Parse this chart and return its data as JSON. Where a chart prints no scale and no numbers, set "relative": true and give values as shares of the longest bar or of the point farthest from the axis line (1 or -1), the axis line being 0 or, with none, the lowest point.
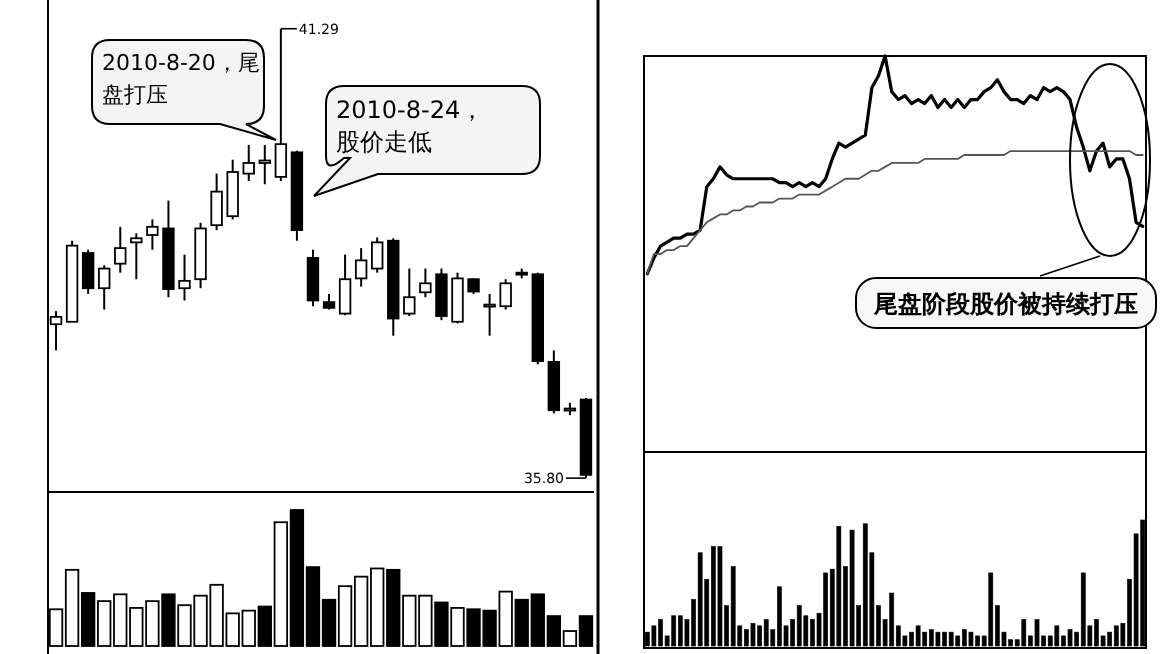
{
  "chart_data": [
    {
      "type": "candlestick",
      "categories": [
        null,
        null,
        null,
        null,
        null,
        null,
        null,
        null,
        null,
        null,
        null,
        null,
        null,
        null,
        null,
        null,
        null,
        null,
        null,
        null,
        null,
        null,
        null,
        null,
        null,
        null,
        null,
        null,
        null,
        null,
        null,
        null,
        null,
        null
      ],
      "ohlc": [
        [
          37.68,
          37.84,
          37.36,
          37.77
        ],
        [
          37.71,
          38.7,
          37.71,
          38.64
        ],
        [
          38.55,
          38.59,
          38.05,
          38.12
        ],
        [
          38.12,
          38.4,
          37.86,
          38.36
        ],
        [
          38.42,
          38.87,
          38.31,
          38.61
        ],
        [
          38.68,
          38.79,
          38.23,
          38.73
        ],
        [
          38.77,
          38.96,
          38.59,
          38.87
        ],
        [
          38.85,
          39.19,
          38.01,
          38.11
        ],
        [
          38.12,
          38.53,
          37.97,
          38.21
        ],
        [
          38.23,
          38.92,
          38.12,
          38.85
        ],
        [
          38.89,
          39.52,
          38.83,
          39.3
        ],
        [
          39.0,
          39.69,
          38.96,
          39.54
        ],
        [
          39.52,
          39.87,
          39.43,
          39.65
        ],
        [
          39.65,
          39.87,
          39.39,
          39.68
        ],
        [
          39.48,
          41.29,
          39.43,
          39.88
        ],
        [
          39.78,
          39.8,
          38.7,
          38.83
        ],
        [
          38.49,
          38.59,
          37.9,
          37.97
        ],
        [
          37.95,
          38.05,
          37.86,
          37.88
        ],
        [
          37.81,
          38.53,
          37.79,
          38.23
        ],
        [
          38.24,
          38.61,
          38.14,
          38.46
        ],
        [
          38.36,
          38.74,
          38.31,
          38.68
        ],
        [
          38.7,
          38.73,
          37.54,
          37.75
        ],
        [
          37.81,
          38.36,
          37.78,
          38.01
        ],
        [
          38.07,
          38.36,
          38.01,
          38.18
        ],
        [
          38.29,
          38.36,
          37.73,
          37.78
        ],
        [
          37.71,
          38.31,
          37.69,
          38.24
        ],
        [
          38.23,
          38.24,
          38.05,
          38.08
        ],
        [
          37.9,
          38.05,
          37.54,
          37.92
        ],
        [
          37.9,
          38.23,
          37.86,
          38.18
        ],
        [
          38.31,
          38.36,
          38.24,
          38.29
        ],
        [
          38.29,
          38.31,
          37.19,
          37.23
        ],
        [
          37.22,
          37.36,
          36.59,
          36.63
        ],
        [
          36.63,
          36.72,
          36.57,
          36.65
        ],
        [
          36.76,
          36.78,
          35.8,
          35.84
        ]
      ],
      "annotations": [
        "41.29",
        "35.80",
        "2010-8-20，尾盘打压",
        "2010-8-24，股价走低"
      ]
    },
    {
      "type": "bar",
      "relative": true,
      "categories": [
        null,
        null,
        null,
        null,
        null,
        null,
        null,
        null,
        null,
        null,
        null,
        null,
        null,
        null,
        null,
        null,
        null,
        null,
        null,
        null,
        null,
        null,
        null,
        null,
        null,
        null,
        null,
        null,
        null,
        null,
        null,
        null,
        null,
        null
      ],
      "values": [
        0.27,
        0.56,
        0.39,
        0.33,
        0.38,
        0.28,
        0.33,
        0.38,
        0.3,
        0.37,
        0.45,
        0.24,
        0.26,
        0.29,
        0.91,
        1,
        0.58,
        0.34,
        0.44,
        0.51,
        0.57,
        0.56,
        0.37,
        0.37,
        0.32,
        0.28,
        0.27,
        0.26,
        0.4,
        0.34,
        0.38,
        0.22,
        0.11,
        0.22
      ],
      "colors": [
        "#ffffff",
        "#ffffff",
        "#000000",
        "#ffffff",
        "#ffffff",
        "#ffffff",
        "#ffffff",
        "#000000",
        "#ffffff",
        "#ffffff",
        "#ffffff",
        "#ffffff",
        "#ffffff",
        "#000000",
        "#ffffff",
        "#000000",
        "#000000",
        "#000000",
        "#ffffff",
        "#ffffff",
        "#ffffff",
        "#000000",
        "#ffffff",
        "#ffffff",
        "#000000",
        "#ffffff",
        "#000000",
        "#000000",
        "#ffffff",
        "#000000",
        "#000000",
        "#000000",
        "#ffffff",
        "#000000"
      ]
    },
    {
      "type": "line",
      "relative": true,
      "categories": [
        null,
        null,
        null,
        null,
        null,
        null,
        null,
        null,
        null,
        null,
        null,
        null,
        null,
        null,
        null,
        null,
        null,
        null,
        null,
        null,
        null,
        null,
        null,
        null,
        null,
        null,
        null,
        null,
        null,
        null,
        null,
        null,
        null,
        null,
        null,
        null,
        null,
        null,
        null,
        null,
        null,
        null,
        null,
        null,
        null,
        null,
        null,
        null,
        null,
        null,
        null,
        null,
        null,
        null,
        null,
        null,
        null,
        null,
        null,
        null,
        null,
        null,
        null,
        null,
        null,
        null,
        null,
        null,
        null,
        null,
        null,
        null,
        null,
        null,
        null,
        null
      ],
      "series": [
        {
          "color": "#000000",
          "values": [
            0.45,
            0.49,
            0.52,
            0.53,
            0.54,
            0.54,
            0.55,
            0.55,
            0.56,
            0.67,
            0.69,
            0.72,
            0.7,
            0.69,
            0.69,
            0.69,
            0.69,
            0.69,
            0.69,
            0.69,
            0.68,
            0.68,
            0.67,
            0.68,
            0.67,
            0.68,
            0.67,
            0.69,
            0.74,
            0.78,
            0.77,
            0.78,
            0.79,
            0.8,
            0.92,
            0.95,
            1,
            0.91,
            0.89,
            0.9,
            0.88,
            0.89,
            0.88,
            0.9,
            0.87,
            0.89,
            0.87,
            0.89,
            0.87,
            0.89,
            0.89,
            0.91,
            0.92,
            0.94,
            0.91,
            0.89,
            0.89,
            0.88,
            0.9,
            0.89,
            0.92,
            0.91,
            0.92,
            0.91,
            0.89,
            0.82,
            0.77,
            0.71,
            0.76,
            0.78,
            0.72,
            0.74,
            0.74,
            0.69,
            0.58,
            0.57
          ]
        },
        {
          "color": "#555555",
          "values": [
            0.45,
            0.5,
            0.5,
            0.51,
            0.51,
            0.52,
            0.52,
            0.54,
            0.56,
            0.58,
            0.59,
            0.6,
            0.6,
            0.61,
            0.61,
            0.62,
            0.62,
            0.63,
            0.63,
            0.63,
            0.64,
            0.64,
            0.64,
            0.65,
            0.65,
            0.65,
            0.65,
            0.66,
            0.67,
            0.68,
            0.69,
            0.69,
            0.69,
            0.7,
            0.71,
            0.71,
            0.72,
            0.73,
            0.73,
            0.73,
            0.73,
            0.73,
            0.74,
            0.74,
            0.74,
            0.74,
            0.74,
            0.74,
            0.75,
            0.75,
            0.75,
            0.75,
            0.75,
            0.75,
            0.75,
            0.76,
            0.76,
            0.76,
            0.76,
            0.76,
            0.76,
            0.76,
            0.76,
            0.76,
            0.76,
            0.76,
            0.76,
            0.76,
            0.76,
            0.76,
            0.76,
            0.76,
            0.76,
            0.76,
            0.75,
            0.75
          ]
        }
      ],
      "annotations": [
        "尾盘阶段股价被持续打压"
      ]
    },
    {
      "type": "bar",
      "relative": true,
      "color": "#000000",
      "categories": [
        null,
        null,
        null,
        null,
        null,
        null,
        null,
        null,
        null,
        null,
        null,
        null,
        null,
        null,
        null,
        null,
        null,
        null,
        null,
        null,
        null,
        null,
        null,
        null,
        null,
        null,
        null,
        null,
        null,
        null,
        null,
        null,
        null,
        null,
        null,
        null,
        null,
        null,
        null,
        null,
        null,
        null,
        null,
        null,
        null,
        null,
        null,
        null,
        null,
        null,
        null,
        null,
        null,
        null,
        null,
        null,
        null,
        null,
        null,
        null,
        null,
        null,
        null,
        null,
        null,
        null,
        null,
        null,
        null,
        null,
        null,
        null,
        null,
        null,
        null,
        null
      ],
      "values": [
        0.11,
        0.16,
        0.21,
        0.08,
        0.24,
        0.24,
        0.21,
        0.37,
        0.74,
        0.53,
        0.79,
        0.79,
        0.32,
        0.63,
        0.16,
        0.13,
        0.18,
        0.16,
        0.21,
        0.13,
        0.47,
        0.16,
        0.21,
        0.32,
        0.24,
        0.21,
        0.26,
        0.58,
        0.61,
        0.95,
        0.63,
        0.92,
        0.32,
        0.97,
        0.74,
        0.32,
        0.21,
        0.42,
        0.16,
        0.08,
        0.11,
        0.16,
        0.11,
        0.13,
        0.11,
        0.11,
        0.11,
        0.08,
        0.13,
        0.11,
        0.08,
        0.08,
        0.58,
        0.32,
        0.11,
        0.05,
        0.05,
        0.21,
        0.08,
        0.21,
        0.08,
        0.08,
        0.16,
        0.08,
        0.13,
        0.11,
        0.58,
        0.16,
        0.21,
        0.08,
        0.11,
        0.16,
        0.18,
        0.53,
        0.89,
        1
      ]
    }
  ]
}
